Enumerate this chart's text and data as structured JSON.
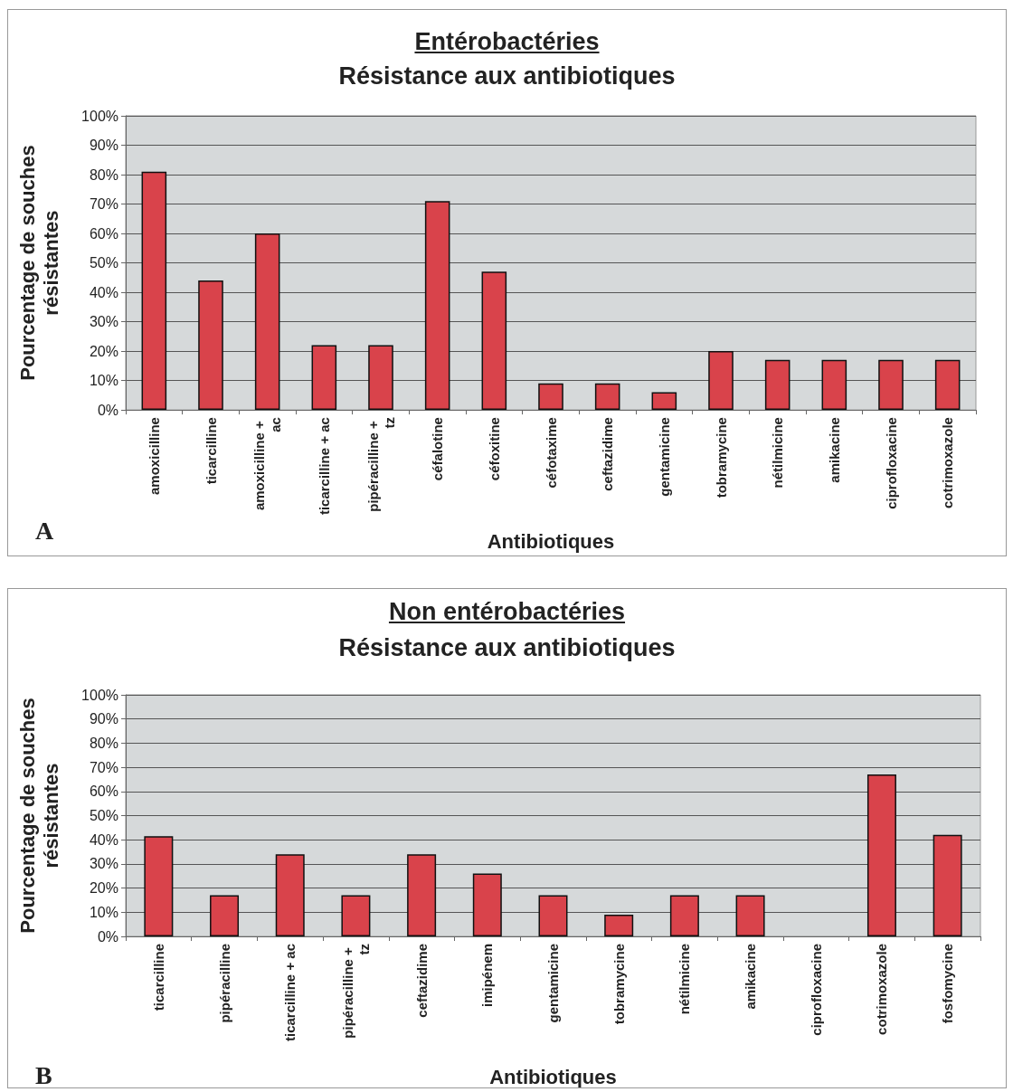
{
  "chart_data": [
    {
      "type": "bar",
      "title": "Entérobactéries",
      "subtitle": "Résistance aux antibiotiques",
      "xlabel": "Antibiotiques",
      "ylabel": "Pourcentage de souches résistantes",
      "categories": [
        "amoxicilline",
        "ticarcilline",
        "amoxicilline + ac",
        "ticarcilline + ac",
        "pipéracilline + tz",
        "céfalotine",
        "céfoxitine",
        "céfotaxime",
        "ceftazidime",
        "gentamicine",
        "tobramycine",
        "nétilmicine",
        "amikacine",
        "ciprofloxacine",
        "cotrimoxazole"
      ],
      "values": [
        81,
        44,
        60,
        22,
        22,
        71,
        47,
        9,
        9,
        6,
        20,
        17,
        17,
        17,
        17
      ],
      "color": "#d9434b",
      "ylim": [
        0,
        100
      ],
      "yticks": [
        {
          "value": 0,
          "label": "0%"
        },
        {
          "value": 10,
          "label": "10%"
        },
        {
          "value": 20,
          "label": "20%"
        },
        {
          "value": 30,
          "label": "30%"
        },
        {
          "value": 40,
          "label": "40%"
        },
        {
          "value": 50,
          "label": "50%"
        },
        {
          "value": 60,
          "label": "60%"
        },
        {
          "value": 70,
          "label": "70%"
        },
        {
          "value": 80,
          "label": "80%"
        },
        {
          "value": 90,
          "label": "90%"
        },
        {
          "value": 100,
          "label": "100%"
        }
      ],
      "grid": "y",
      "annotations": [
        "A"
      ]
    },
    {
      "type": "bar",
      "title": "Non entérobactéries",
      "subtitle": "Résistance aux antibiotiques",
      "xlabel": "Antibiotiques",
      "ylabel": "Pourcentage de souches résistantes",
      "categories": [
        "ticarcilline",
        "pipéracilline",
        "ticarcilline + ac",
        "pipéracilline + tz",
        "ceftazidime",
        "imipénem",
        "gentamicine",
        "tobramycine",
        "nétilmicine",
        "amikacine",
        "ciprofloxacine",
        "cotrimoxazole",
        "fosfomycine"
      ],
      "values": [
        41.5,
        17,
        34,
        17,
        34,
        26,
        17,
        9,
        17,
        17,
        0,
        67,
        42
      ],
      "color": "#d9434b",
      "ylim": [
        0,
        100
      ],
      "yticks": [
        {
          "value": 0,
          "label": "0%"
        },
        {
          "value": 10,
          "label": "10%"
        },
        {
          "value": 20,
          "label": "20%"
        },
        {
          "value": 30,
          "label": "30%"
        },
        {
          "value": 40,
          "label": "40%"
        },
        {
          "value": 50,
          "label": "50%"
        },
        {
          "value": 60,
          "label": "60%"
        },
        {
          "value": 70,
          "label": "70%"
        },
        {
          "value": 80,
          "label": "80%"
        },
        {
          "value": 90,
          "label": "90%"
        },
        {
          "value": 100,
          "label": "100%"
        }
      ],
      "grid": "y",
      "annotations": [
        "B"
      ]
    }
  ]
}
